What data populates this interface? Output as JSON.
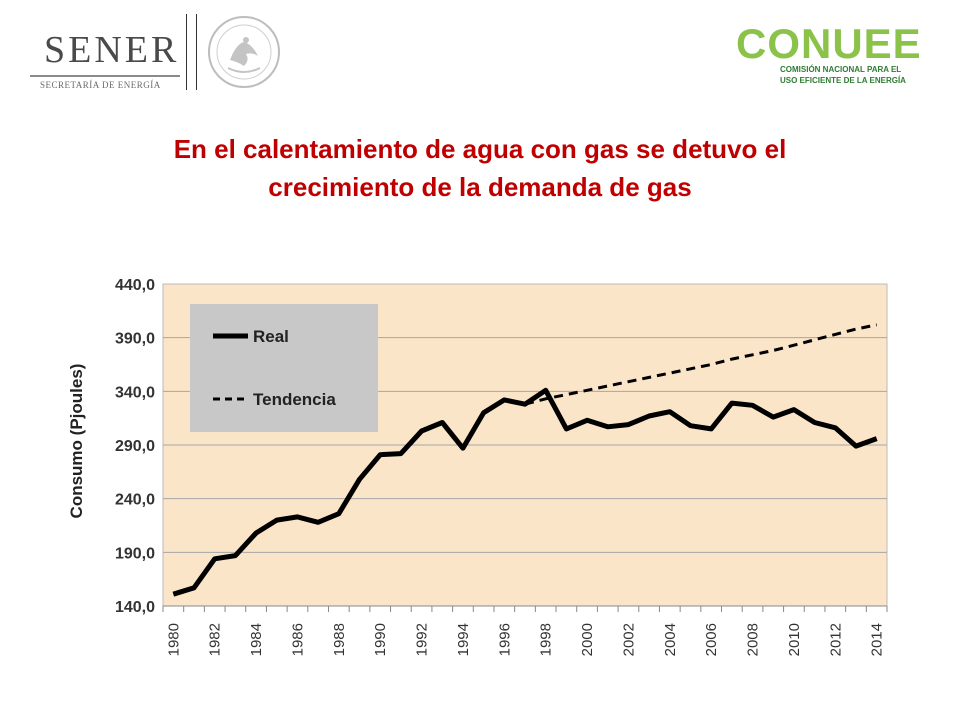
{
  "header": {
    "sener": {
      "name": "SENER",
      "subtitle": "SECRETARÍA DE ENERGÍA"
    },
    "seal": {
      "text": "ESTADOS UNIDOS MEXICANOS"
    },
    "conuee": {
      "name": "CONUEE",
      "subtitle_line1": "Comisión Nacional para el",
      "subtitle_line2": "Uso Eficiente de la Energía"
    },
    "colors": {
      "sener_gray": "#4a4a4a",
      "conuee_green": "#8bc34a",
      "conuee_dark": "#2e7d32"
    }
  },
  "title_line1": "En el calentamiento de agua con gas se detuvo el",
  "title_line2": "crecimiento de la demanda de gas",
  "colors": {
    "title": "#c00000",
    "plot_bg": "#fbe5c8",
    "legend_bg": "#c8c8c8",
    "line": "#000000"
  },
  "chart_data": {
    "type": "line",
    "ylabel": "Consumo (Pjoules)",
    "ylim": [
      140,
      440
    ],
    "yticks": [
      "440,0",
      "390,0",
      "340,0",
      "290,0",
      "240,0",
      "190,0",
      "140,0"
    ],
    "x": [
      1980,
      1981,
      1982,
      1983,
      1984,
      1985,
      1986,
      1987,
      1988,
      1989,
      1990,
      1991,
      1992,
      1993,
      1994,
      1995,
      1996,
      1997,
      1998,
      1999,
      2000,
      2001,
      2002,
      2003,
      2004,
      2005,
      2006,
      2007,
      2008,
      2009,
      2010,
      2011,
      2012,
      2013,
      2014
    ],
    "xticks": [
      "1980",
      "1982",
      "1984",
      "1986",
      "1988",
      "1990",
      "1992",
      "1994",
      "1996",
      "1998",
      "2000",
      "2002",
      "2004",
      "2006",
      "2008",
      "2010",
      "2012",
      "2014"
    ],
    "series": [
      {
        "name": "Real",
        "style": "solid",
        "values": [
          151,
          157,
          184,
          187,
          208,
          220,
          223,
          218,
          226,
          258,
          281,
          282,
          303,
          311,
          287,
          320,
          332,
          328,
          341,
          305,
          313,
          307,
          309,
          317,
          321,
          308,
          305,
          329,
          327,
          316,
          323,
          311,
          306,
          289,
          296
        ]
      },
      {
        "name": "Tendencia",
        "style": "dashed",
        "x": [
          1997,
          1998,
          1999,
          2000,
          2001,
          2002,
          2003,
          2004,
          2005,
          2006,
          2007,
          2008,
          2009,
          2010,
          2011,
          2012,
          2013,
          2014
        ],
        "values": [
          328,
          333,
          337,
          341,
          345,
          349,
          353,
          357,
          361,
          365,
          370,
          374,
          378,
          383,
          388,
          393,
          398,
          402
        ]
      }
    ],
    "legend": {
      "placement": "top-left",
      "labels": [
        "Real",
        "Tendencia"
      ]
    },
    "grid": true
  }
}
